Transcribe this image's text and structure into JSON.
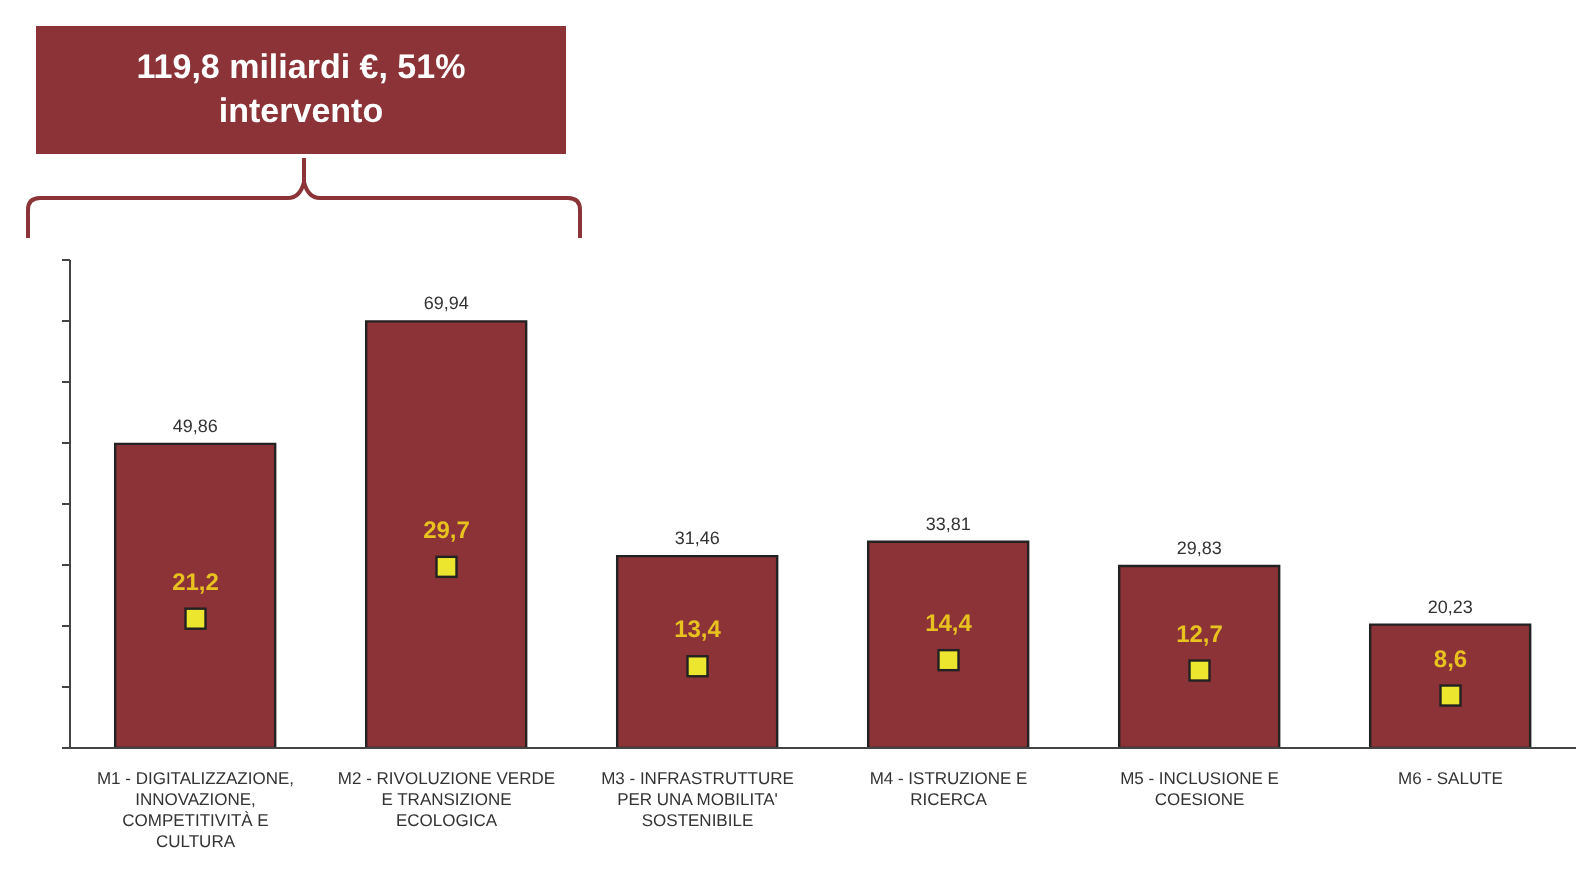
{
  "chart_data": {
    "type": "bar",
    "annotations": [
      "119,8 miliardi €, 51% intervento"
    ],
    "categories": [
      "M1 - DIGITALIZZAZIONE, INNOVAZIONE, COMPETITIVITÀ E CULTURA",
      "M2 - RIVOLUZIONE VERDE E TRANSIZIONE ECOLOGICA",
      "M3 - INFRASTRUTTURE PER UNA MOBILITA' SOSTENIBILE",
      "M4 - ISTRUZIONE E RICERCA",
      "M5 - INCLUSIONE E COESIONE",
      "M6 - SALUTE"
    ],
    "series": [
      {
        "color": "#8b3337",
        "values": [
          49.86,
          69.94,
          31.46,
          33.81,
          29.83,
          20.23
        ],
        "value_labels": [
          "49,86",
          "69,94",
          "31,46",
          "33,81",
          "29,83",
          "20,23"
        ]
      },
      {
        "type": "scatter",
        "color": "#ece62e",
        "values": [
          21.2,
          29.7,
          13.4,
          14.4,
          12.7,
          8.6
        ],
        "value_labels": [
          "21,2",
          "29,7",
          "13,4",
          "14,4",
          "12,7",
          "8,6"
        ]
      }
    ],
    "marker": "square",
    "ylim": [
      0,
      80
    ],
    "yticks": [
      {
        "value": 0,
        "label": null
      },
      {
        "value": 10,
        "label": null
      },
      {
        "value": 20,
        "label": null
      },
      {
        "value": 30,
        "label": null
      },
      {
        "value": 40,
        "label": null
      },
      {
        "value": 50,
        "label": null
      },
      {
        "value": 60,
        "label": null
      },
      {
        "value": 70,
        "label": null
      },
      {
        "value": 80,
        "label": null
      }
    ],
    "tick_labels": "x",
    "grid": false
  }
}
